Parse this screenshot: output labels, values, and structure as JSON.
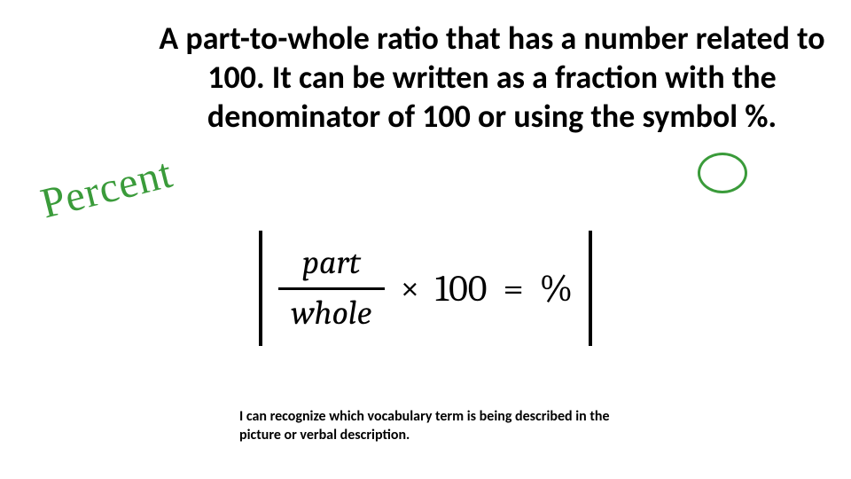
{
  "definition_text": "A part-to-whole ratio that has a number related to 100. It can be written as a fraction with the denominator of 100 or using the  symbol %.",
  "handwritten_label": "Percent",
  "formula": {
    "numerator": "part",
    "denominator": "whole",
    "operator": "×",
    "multiplier": "100",
    "equals": "=",
    "result": "%"
  },
  "objective_text": "I can recognize which vocabulary term is being described in the picture or verbal description.",
  "colors": {
    "handwriting": "#3a9b3a",
    "text": "#000000",
    "background": "#ffffff"
  },
  "fonts": {
    "body": "Calibri",
    "handwriting": "Comic Sans MS",
    "formula": "Cambria"
  }
}
